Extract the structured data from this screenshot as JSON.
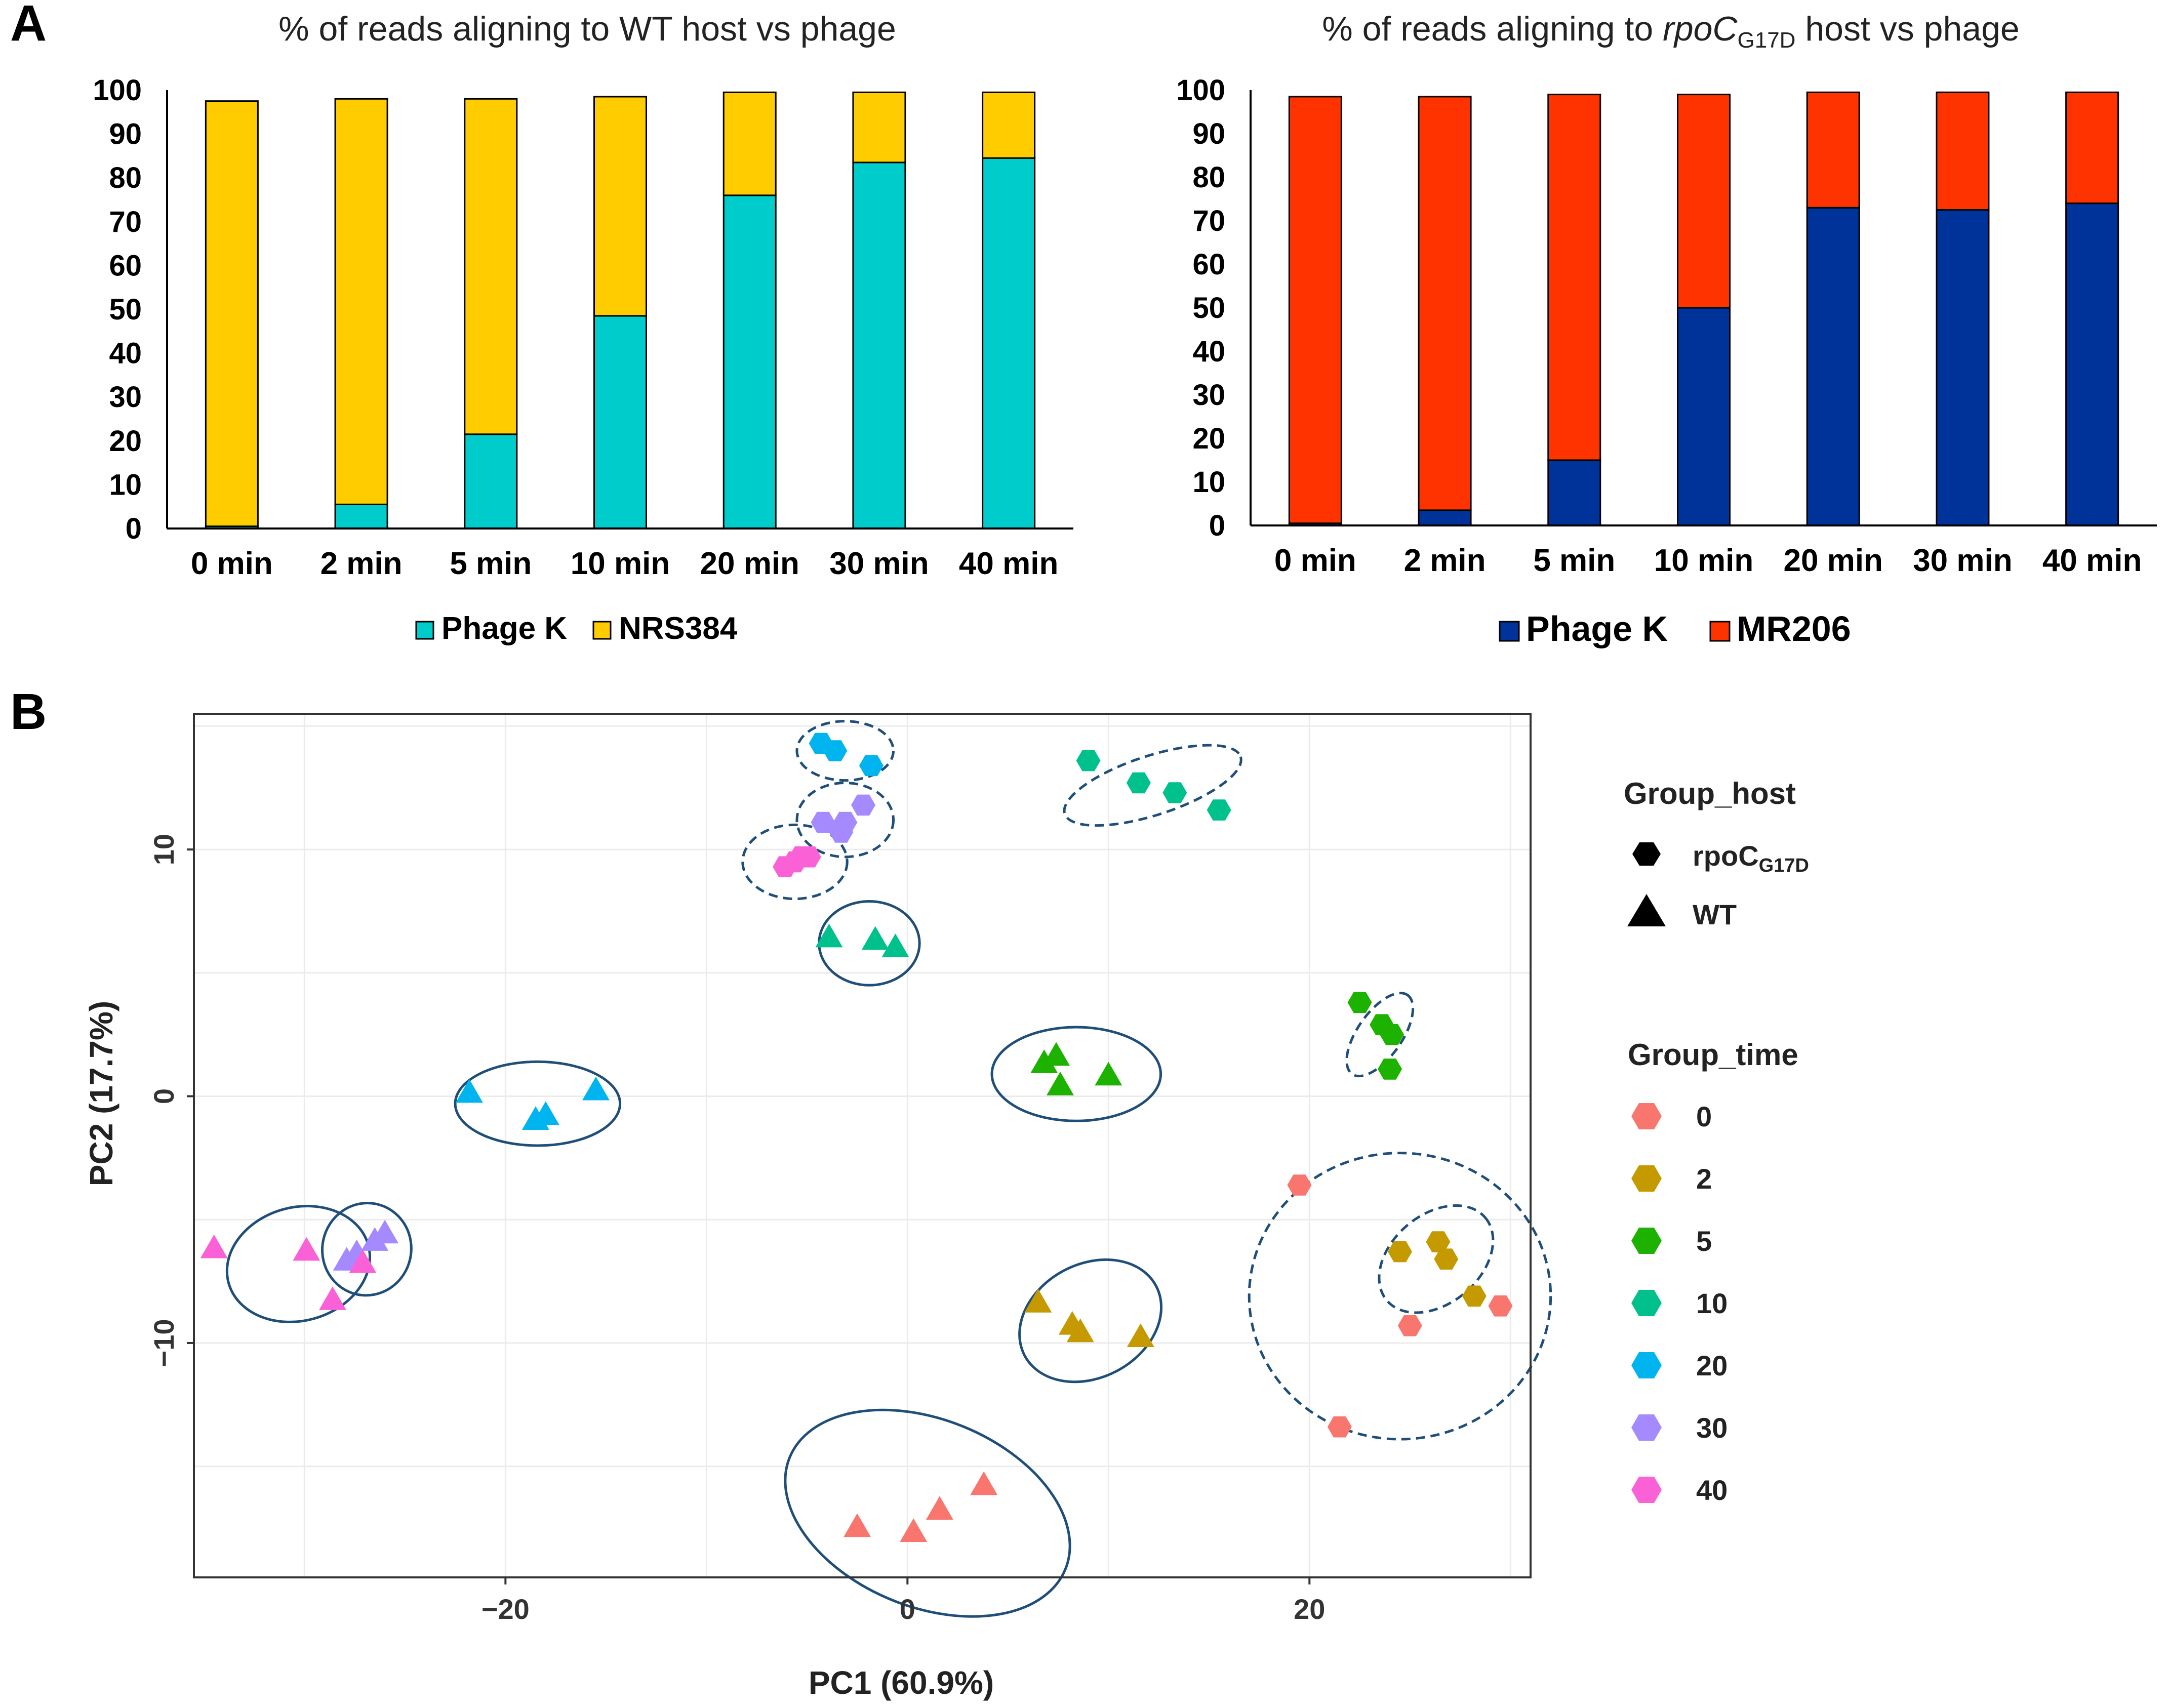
{
  "panels": {
    "a": "A",
    "b": "B"
  },
  "colors": {
    "wt_phage": "#00CCCC",
    "wt_host": "#FFCC00",
    "mut_phage": "#003399",
    "mut_host": "#FF3300",
    "ellipse": "#1F4E79",
    "t0": "#F8766D",
    "t2": "#C49A00",
    "t5": "#1DB100",
    "t10": "#00C08B",
    "t20": "#00B4EF",
    "t30": "#A58AFF",
    "t40": "#FB61D7"
  },
  "chart_data": [
    {
      "type": "bar",
      "stacked": true,
      "title": "% of reads aligning to WT host vs phage",
      "categories": [
        "0 min",
        "2 min",
        "5 min",
        "10 min",
        "20 min",
        "30 min",
        "40 min"
      ],
      "series": [
        {
          "name": "Phage K",
          "values": [
            0.5,
            5.5,
            21.5,
            48.5,
            76,
            83.5,
            84.5
          ]
        },
        {
          "name": "NRS384",
          "values": [
            97,
            92.5,
            76.5,
            50,
            23.5,
            16,
            15
          ]
        }
      ],
      "yticks": [
        "0",
        "10",
        "20",
        "30",
        "40",
        "50",
        "60",
        "70",
        "80",
        "90",
        "100"
      ],
      "ylim": [
        0,
        100
      ],
      "legend": "bottom"
    },
    {
      "type": "bar",
      "stacked": true,
      "title_prefix": "% of reads aligning to ",
      "title_italic": "rpoC",
      "title_sub": "G17D",
      "title_suffix": " host vs phage",
      "categories": [
        "0 min",
        "2 min",
        "5 min",
        "10 min",
        "20 min",
        "30 min",
        "40 min"
      ],
      "series": [
        {
          "name": "Phage K",
          "values": [
            0.5,
            3.5,
            15,
            50,
            73,
            72.5,
            74
          ]
        },
        {
          "name": "MR206",
          "values": [
            98,
            95,
            84,
            49,
            26.5,
            27,
            25.5
          ]
        }
      ],
      "yticks": [
        "0",
        "10",
        "20",
        "30",
        "40",
        "50",
        "60",
        "70",
        "80",
        "90",
        "100"
      ],
      "ylim": [
        0,
        100
      ],
      "legend": "bottom"
    },
    {
      "type": "scatter",
      "xlabel": "PC1 (60.9%)",
      "ylabel": "PC2 (17.7%)",
      "xlim": [
        -35.5,
        31
      ],
      "ylim": [
        -19.5,
        15.5
      ],
      "xticks": [
        {
          "v": -20,
          "label": "−20"
        },
        {
          "v": 0,
          "label": "0"
        },
        {
          "v": 20,
          "label": "20"
        }
      ],
      "yticks": [
        {
          "v": 10,
          "label": "10"
        },
        {
          "v": 0,
          "label": "0"
        },
        {
          "v": -10,
          "label": "−10"
        }
      ],
      "legend_host_title": "Group_host",
      "legend_host": [
        {
          "shape": "hexagon",
          "label": "rpoC",
          "sub": "G17D"
        },
        {
          "shape": "triangle",
          "label": "WT",
          "sub": ""
        }
      ],
      "legend_time_title": "Group_time",
      "legend_time": [
        {
          "label": "0",
          "color": "#F8766D"
        },
        {
          "label": "2",
          "color": "#C49A00"
        },
        {
          "label": "5",
          "color": "#1DB100"
        },
        {
          "label": "10",
          "color": "#00C08B"
        },
        {
          "label": "20",
          "color": "#00B4EF"
        },
        {
          "label": "30",
          "color": "#A58AFF"
        },
        {
          "label": "40",
          "color": "#FB61D7"
        }
      ],
      "points": [
        {
          "host": "WT",
          "time": "0",
          "x": -2.5,
          "y": -17.5
        },
        {
          "host": "WT",
          "time": "0",
          "x": 0.3,
          "y": -17.7
        },
        {
          "host": "WT",
          "time": "0",
          "x": 1.6,
          "y": -16.8
        },
        {
          "host": "WT",
          "time": "0",
          "x": 3.8,
          "y": -15.8
        },
        {
          "host": "WT",
          "time": "2",
          "x": 6.5,
          "y": -8.4
        },
        {
          "host": "WT",
          "time": "2",
          "x": 8.2,
          "y": -9.3
        },
        {
          "host": "WT",
          "time": "2",
          "x": 8.6,
          "y": -9.6
        },
        {
          "host": "WT",
          "time": "2",
          "x": 11.6,
          "y": -9.8
        },
        {
          "host": "WT",
          "time": "5",
          "x": 6.8,
          "y": 1.3
        },
        {
          "host": "WT",
          "time": "5",
          "x": 7.4,
          "y": 1.6
        },
        {
          "host": "WT",
          "time": "5",
          "x": 7.6,
          "y": 0.4
        },
        {
          "host": "WT",
          "time": "5",
          "x": 10.0,
          "y": 0.8
        },
        {
          "host": "WT",
          "time": "10",
          "x": -3.9,
          "y": 6.4
        },
        {
          "host": "WT",
          "time": "10",
          "x": -1.6,
          "y": 6.3
        },
        {
          "host": "WT",
          "time": "10",
          "x": -0.6,
          "y": 6.0
        },
        {
          "host": "WT",
          "time": "20",
          "x": -21.8,
          "y": 0.1
        },
        {
          "host": "WT",
          "time": "20",
          "x": -18.5,
          "y": -1.0
        },
        {
          "host": "WT",
          "time": "20",
          "x": -18.0,
          "y": -0.8
        },
        {
          "host": "WT",
          "time": "20",
          "x": -15.5,
          "y": 0.2
        },
        {
          "host": "WT",
          "time": "30",
          "x": -27.9,
          "y": -6.7
        },
        {
          "host": "WT",
          "time": "30",
          "x": -27.4,
          "y": -6.4
        },
        {
          "host": "WT",
          "time": "30",
          "x": -26.5,
          "y": -5.9
        },
        {
          "host": "WT",
          "time": "30",
          "x": -26.0,
          "y": -5.6
        },
        {
          "host": "WT",
          "time": "40",
          "x": -34.5,
          "y": -6.2
        },
        {
          "host": "WT",
          "time": "40",
          "x": -29.9,
          "y": -6.3
        },
        {
          "host": "WT",
          "time": "40",
          "x": -28.6,
          "y": -8.3
        },
        {
          "host": "WT",
          "time": "40",
          "x": -27.1,
          "y": -6.8
        },
        {
          "host": "rpoCG17D",
          "time": "0",
          "x": 19.5,
          "y": -3.6
        },
        {
          "host": "rpoCG17D",
          "time": "0",
          "x": 21.5,
          "y": -13.4
        },
        {
          "host": "rpoCG17D",
          "time": "0",
          "x": 25.0,
          "y": -9.3
        },
        {
          "host": "rpoCG17D",
          "time": "0",
          "x": 29.5,
          "y": -8.5
        },
        {
          "host": "rpoCG17D",
          "time": "2",
          "x": 24.5,
          "y": -6.3
        },
        {
          "host": "rpoCG17D",
          "time": "2",
          "x": 26.4,
          "y": -5.9
        },
        {
          "host": "rpoCG17D",
          "time": "2",
          "x": 26.8,
          "y": -6.6
        },
        {
          "host": "rpoCG17D",
          "time": "2",
          "x": 28.2,
          "y": -8.1
        },
        {
          "host": "rpoCG17D",
          "time": "5",
          "x": 22.5,
          "y": 3.8
        },
        {
          "host": "rpoCG17D",
          "time": "5",
          "x": 23.6,
          "y": 2.9
        },
        {
          "host": "rpoCG17D",
          "time": "5",
          "x": 24.1,
          "y": 2.5
        },
        {
          "host": "rpoCG17D",
          "time": "5",
          "x": 24.0,
          "y": 1.1
        },
        {
          "host": "rpoCG17D",
          "time": "10",
          "x": 9.0,
          "y": 13.6
        },
        {
          "host": "rpoCG17D",
          "time": "10",
          "x": 11.5,
          "y": 12.7
        },
        {
          "host": "rpoCG17D",
          "time": "10",
          "x": 13.3,
          "y": 12.3
        },
        {
          "host": "rpoCG17D",
          "time": "10",
          "x": 15.5,
          "y": 11.6
        },
        {
          "host": "rpoCG17D",
          "time": "20",
          "x": -4.3,
          "y": 14.3
        },
        {
          "host": "rpoCG17D",
          "time": "20",
          "x": -3.6,
          "y": 14.0
        },
        {
          "host": "rpoCG17D",
          "time": "20",
          "x": -1.8,
          "y": 13.4
        },
        {
          "host": "rpoCG17D",
          "time": "30",
          "x": -4.2,
          "y": 11.1
        },
        {
          "host": "rpoCG17D",
          "time": "30",
          "x": -3.3,
          "y": 10.7
        },
        {
          "host": "rpoCG17D",
          "time": "30",
          "x": -3.1,
          "y": 11.1
        },
        {
          "host": "rpoCG17D",
          "time": "30",
          "x": -2.2,
          "y": 11.8
        },
        {
          "host": "rpoCG17D",
          "time": "40",
          "x": -6.1,
          "y": 9.3
        },
        {
          "host": "rpoCG17D",
          "time": "40",
          "x": -5.6,
          "y": 9.5
        },
        {
          "host": "rpoCG17D",
          "time": "40",
          "x": -5.3,
          "y": 9.7
        },
        {
          "host": "rpoCG17D",
          "time": "40",
          "x": -4.9,
          "y": 9.7
        }
      ],
      "ellipses": [
        {
          "host": "WT",
          "time": "0",
          "cx": 1.0,
          "cy": -16.9,
          "rx": 7.4,
          "ry": 3.8,
          "angle": -22
        },
        {
          "host": "WT",
          "time": "2",
          "cx": 9.1,
          "cy": -9.1,
          "rx": 3.7,
          "ry": 2.3,
          "angle": 28
        },
        {
          "host": "WT",
          "time": "5",
          "cx": 8.4,
          "cy": 0.9,
          "rx": 4.2,
          "ry": 1.9,
          "angle": 0
        },
        {
          "host": "WT",
          "time": "10",
          "cx": -1.9,
          "cy": 6.2,
          "rx": 2.5,
          "ry": 1.7,
          "angle": 0
        },
        {
          "host": "WT",
          "time": "20",
          "cx": -18.4,
          "cy": -0.3,
          "rx": 4.1,
          "ry": 1.7,
          "angle": 0
        },
        {
          "host": "WT",
          "time": "30",
          "cx": -26.9,
          "cy": -6.2,
          "rx": 2.3,
          "ry": 1.8,
          "angle": 78
        },
        {
          "host": "WT",
          "time": "40",
          "cx": -30.3,
          "cy": -6.8,
          "rx": 3.6,
          "ry": 2.3,
          "angle": 15
        },
        {
          "host": "rpoCG17D",
          "time": "0",
          "cx": 24.5,
          "cy": -8.1,
          "rx": 7.5,
          "ry": 5.8,
          "angle": 0
        },
        {
          "host": "rpoCG17D",
          "time": "2",
          "cx": 26.3,
          "cy": -6.6,
          "rx": 3.2,
          "ry": 1.8,
          "angle": 40
        },
        {
          "host": "rpoCG17D",
          "time": "5",
          "cx": 23.5,
          "cy": 2.5,
          "rx": 2.4,
          "ry": 0.9,
          "angle": 55
        },
        {
          "host": "rpoCG17D",
          "time": "10",
          "cx": 12.2,
          "cy": 12.6,
          "rx": 4.6,
          "ry": 1.2,
          "angle": 18
        },
        {
          "host": "rpoCG17D",
          "time": "20",
          "cx": -3.1,
          "cy": 14.0,
          "rx": 2.4,
          "ry": 1.2,
          "angle": 0
        },
        {
          "host": "rpoCG17D",
          "time": "30",
          "cx": -3.1,
          "cy": 11.2,
          "rx": 2.4,
          "ry": 1.5,
          "angle": 0
        },
        {
          "host": "rpoCG17D",
          "time": "40",
          "cx": -5.6,
          "cy": 9.5,
          "rx": 2.6,
          "ry": 1.5,
          "angle": 0
        }
      ]
    }
  ]
}
